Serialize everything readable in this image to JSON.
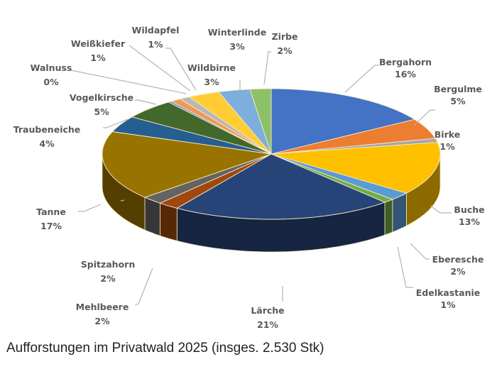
{
  "chart_data": {
    "type": "pie",
    "style": "3d-exploded-none",
    "title": "",
    "caption": "Aufforstungen im Privatwald 2025 (insges. 2.530 Stk)",
    "total_units": "2.530 Stk",
    "start_angle": "12 o'clock, clockwise",
    "legend": "none (data labels with leader lines)",
    "slices": [
      {
        "label": "Bergahorn",
        "value": 16,
        "pct_label": "16%",
        "color": "#4472C4"
      },
      {
        "label": "Bergulme",
        "value": 5,
        "pct_label": "5%",
        "color": "#ED7D31"
      },
      {
        "label": "Birke",
        "value": 1,
        "pct_label": "1%",
        "color": "#A5A5A5"
      },
      {
        "label": "Buche",
        "value": 13,
        "pct_label": "13%",
        "color": "#FFC000"
      },
      {
        "label": "Eberesche",
        "value": 2,
        "pct_label": "2%",
        "color": "#5B9BD5"
      },
      {
        "label": "Edelkastanie",
        "value": 1,
        "pct_label": "1%",
        "color": "#70AD47"
      },
      {
        "label": "Lärche",
        "value": 21,
        "pct_label": "21%",
        "color": "#264478"
      },
      {
        "label": "Mehlbeere",
        "value": 2,
        "pct_label": "2%",
        "color": "#9E480E"
      },
      {
        "label": "Spitzahorn",
        "value": 2,
        "pct_label": "2%",
        "color": "#636363"
      },
      {
        "label": "Tanne",
        "value": 17,
        "pct_label": "17%",
        "color": "#997300"
      },
      {
        "label": "Traubeneiche",
        "value": 4,
        "pct_label": "4%",
        "color": "#255E91"
      },
      {
        "label": "Vogelkirsche",
        "value": 5,
        "pct_label": "5%",
        "color": "#43682B"
      },
      {
        "label": "Walnuss",
        "value": 0.3,
        "pct_label": "0%",
        "color": "#698ED0"
      },
      {
        "label": "Weißkiefer",
        "value": 1,
        "pct_label": "1%",
        "color": "#F1975A"
      },
      {
        "label": "Wildapfel",
        "value": 1,
        "pct_label": "1%",
        "color": "#B7B7B7"
      },
      {
        "label": "Wildbirne",
        "value": 3,
        "pct_label": "3%",
        "color": "#FFCD33"
      },
      {
        "label": "Winterlinde",
        "value": 3,
        "pct_label": "3%",
        "color": "#7CAFDD"
      },
      {
        "label": "Zirbe",
        "value": 2,
        "pct_label": "2%",
        "color": "#8CC168"
      }
    ]
  },
  "labels": {
    "bergahorn": {
      "name": "Bergahorn",
      "pct": "16%"
    },
    "bergulme": {
      "name": "Bergulme",
      "pct": "5%"
    },
    "birke": {
      "name": "Birke",
      "pct": "1%"
    },
    "buche": {
      "name": "Buche",
      "pct": "13%"
    },
    "eberesche": {
      "name": "Eberesche",
      "pct": "2%"
    },
    "edelkastanie": {
      "name": "Edelkastanie",
      "pct": "1%"
    },
    "laerche": {
      "name": "Lärche",
      "pct": "21%"
    },
    "mehlbeere": {
      "name": "Mehlbeere",
      "pct": "2%"
    },
    "spitzahorn": {
      "name": "Spitzahorn",
      "pct": "2%"
    },
    "tanne": {
      "name": "Tanne",
      "pct": "17%"
    },
    "traubeneiche": {
      "name": "Traubeneiche",
      "pct": "4%"
    },
    "vogelkirsche": {
      "name": "Vogelkirsche",
      "pct": "5%"
    },
    "walnuss": {
      "name": "Walnuss",
      "pct": "0%"
    },
    "weisskiefer": {
      "name": "Weißkiefer",
      "pct": "1%"
    },
    "wildapfel": {
      "name": "Wildapfel",
      "pct": "1%"
    },
    "wildbirne": {
      "name": "Wildbirne",
      "pct": "3%"
    },
    "winterlinde": {
      "name": "Winterlinde",
      "pct": "3%"
    },
    "zirbe": {
      "name": "Zirbe",
      "pct": "2%"
    }
  },
  "caption": "Aufforstungen im Privatwald 2025 (insges. 2.530 Stk)"
}
